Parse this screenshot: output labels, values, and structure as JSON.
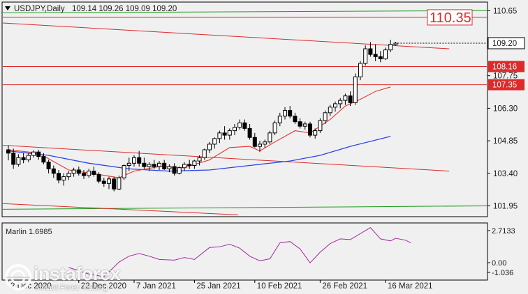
{
  "header": {
    "symbol_label": "USDJPY,Daily",
    "ohlc_label": "109.14 109.26 109.09 109.20"
  },
  "indicator": {
    "label": "Marlin 1.6985",
    "scale_labels": [
      "2.7133",
      "0.00",
      "-1.036"
    ]
  },
  "price_axis": {
    "labels": [
      "110.65",
      "109.20",
      "107.75",
      "106.30",
      "104.85",
      "103.40",
      "101.95"
    ],
    "current_price": "109.20",
    "level_labels": [
      "110.35",
      "108.16",
      "107.35"
    ]
  },
  "time_axis": {
    "labels": [
      "2 Dec 2020",
      "22 Dec 2020",
      "7 Jan 2021",
      "25 Jan 2021",
      "10 Feb 2021",
      "26 Feb 2021",
      "16 Mar 2021"
    ]
  },
  "watermark": {
    "name": "instaforex",
    "sub": "Instant Forex Trading"
  },
  "colors": {
    "background": "#f0f0f0",
    "bull_candle": "#ffffff",
    "bear_candle": "#000000",
    "ma_fast": "#e8322e",
    "ma_slow": "#2b43e6",
    "level_line": "#dd2a2a",
    "green_line": "#1f9a1f",
    "oscillator": "#a22aa2"
  },
  "chart_data": {
    "type": "candlestick",
    "symbol": "USDJPY",
    "timeframe": "Daily",
    "price_range": [
      101.5,
      111.0
    ],
    "price_ticks": [
      110.65,
      109.2,
      107.75,
      106.3,
      104.85,
      103.4,
      101.95
    ],
    "levels": [
      110.35,
      108.16,
      107.35
    ],
    "candles": [
      [
        104.45,
        104.65,
        103.98,
        104.3
      ],
      [
        104.3,
        104.5,
        103.6,
        103.8
      ],
      [
        103.8,
        104.25,
        103.7,
        104.1
      ],
      [
        104.1,
        104.3,
        103.85,
        104.0
      ],
      [
        104.0,
        104.3,
        103.9,
        104.2
      ],
      [
        104.2,
        104.42,
        104.1,
        104.35
      ],
      [
        104.35,
        104.45,
        104.0,
        104.15
      ],
      [
        104.15,
        104.3,
        103.8,
        103.9
      ],
      [
        103.9,
        104.0,
        103.4,
        103.6
      ],
      [
        103.6,
        103.75,
        103.2,
        103.4
      ],
      [
        103.4,
        103.55,
        102.95,
        103.1
      ],
      [
        103.1,
        103.4,
        102.85,
        103.25
      ],
      [
        103.25,
        103.5,
        103.1,
        103.4
      ],
      [
        103.4,
        103.65,
        103.25,
        103.55
      ],
      [
        103.55,
        103.7,
        103.3,
        103.4
      ],
      [
        103.4,
        103.55,
        103.15,
        103.3
      ],
      [
        103.3,
        103.6,
        103.2,
        103.5
      ],
      [
        103.5,
        103.7,
        103.25,
        103.35
      ],
      [
        103.35,
        103.45,
        102.95,
        103.05
      ],
      [
        103.05,
        103.2,
        102.8,
        102.95
      ],
      [
        102.95,
        103.25,
        102.7,
        103.15
      ],
      [
        103.15,
        103.25,
        102.6,
        102.7
      ],
      [
        102.7,
        103.3,
        102.65,
        103.2
      ],
      [
        103.2,
        103.8,
        103.1,
        103.75
      ],
      [
        103.75,
        104.1,
        103.5,
        103.85
      ],
      [
        103.85,
        104.2,
        103.7,
        104.1
      ],
      [
        104.1,
        104.4,
        103.7,
        103.85
      ],
      [
        103.85,
        104.1,
        103.6,
        103.7
      ],
      [
        103.7,
        103.9,
        103.5,
        103.8
      ],
      [
        103.8,
        104.0,
        103.6,
        103.7
      ],
      [
        103.7,
        103.95,
        103.55,
        103.85
      ],
      [
        103.85,
        104.0,
        103.55,
        103.6
      ],
      [
        103.6,
        103.8,
        103.45,
        103.7
      ],
      [
        103.7,
        103.85,
        103.3,
        103.4
      ],
      [
        103.4,
        103.7,
        103.35,
        103.65
      ],
      [
        103.65,
        103.9,
        103.5,
        103.8
      ],
      [
        103.8,
        104.0,
        103.6,
        103.75
      ],
      [
        103.75,
        104.0,
        103.6,
        103.95
      ],
      [
        103.95,
        104.2,
        103.75,
        104.1
      ],
      [
        104.1,
        104.5,
        104.0,
        104.45
      ],
      [
        104.45,
        104.8,
        104.3,
        104.7
      ],
      [
        104.7,
        105.0,
        104.5,
        104.95
      ],
      [
        104.95,
        105.3,
        104.75,
        105.2
      ],
      [
        105.2,
        105.5,
        104.9,
        105.1
      ],
      [
        105.1,
        105.4,
        104.9,
        105.3
      ],
      [
        105.3,
        105.6,
        105.1,
        105.45
      ],
      [
        105.45,
        105.8,
        105.35,
        105.65
      ],
      [
        105.65,
        105.8,
        105.3,
        105.4
      ],
      [
        105.4,
        105.6,
        104.9,
        105.0
      ],
      [
        105.0,
        105.2,
        104.55,
        104.6
      ],
      [
        104.6,
        104.85,
        104.35,
        104.7
      ],
      [
        104.7,
        104.9,
        104.55,
        104.8
      ],
      [
        104.8,
        105.3,
        104.7,
        105.2
      ],
      [
        105.2,
        105.75,
        105.1,
        105.65
      ],
      [
        105.65,
        106.1,
        105.5,
        105.95
      ],
      [
        105.95,
        106.35,
        105.8,
        106.2
      ],
      [
        106.2,
        106.4,
        105.85,
        105.95
      ],
      [
        105.95,
        106.1,
        105.6,
        105.7
      ],
      [
        105.7,
        105.85,
        105.4,
        105.5
      ],
      [
        105.5,
        105.7,
        105.35,
        105.6
      ],
      [
        105.6,
        105.7,
        105.0,
        105.1
      ],
      [
        105.1,
        105.4,
        104.95,
        105.3
      ],
      [
        105.3,
        105.85,
        105.2,
        105.75
      ],
      [
        105.75,
        106.2,
        105.6,
        106.1
      ],
      [
        106.1,
        106.45,
        105.95,
        106.35
      ],
      [
        106.35,
        106.6,
        106.15,
        106.5
      ],
      [
        106.5,
        106.75,
        106.3,
        106.65
      ],
      [
        106.65,
        106.95,
        106.45,
        106.85
      ],
      [
        106.85,
        107.05,
        106.4,
        106.55
      ],
      [
        106.55,
        107.85,
        106.45,
        107.7
      ],
      [
        107.7,
        108.4,
        107.55,
        108.3
      ],
      [
        108.3,
        109.1,
        108.2,
        108.95
      ],
      [
        108.95,
        109.25,
        108.6,
        108.7
      ],
      [
        108.7,
        109.15,
        108.4,
        108.6
      ],
      [
        108.6,
        108.85,
        108.35,
        108.5
      ],
      [
        108.5,
        109.0,
        108.45,
        108.9
      ],
      [
        108.9,
        109.35,
        108.8,
        109.15
      ],
      [
        109.14,
        109.26,
        109.09,
        109.2
      ]
    ],
    "ma_fast": [
      [
        0,
        104.45
      ],
      [
        6,
        104.3
      ],
      [
        12,
        103.55
      ],
      [
        18,
        103.35
      ],
      [
        22,
        103.2
      ],
      [
        25,
        103.5
      ],
      [
        30,
        103.7
      ],
      [
        35,
        103.65
      ],
      [
        40,
        104.0
      ],
      [
        44,
        104.55
      ],
      [
        48,
        104.6
      ],
      [
        50,
        104.4
      ],
      [
        53,
        104.8
      ],
      [
        57,
        105.3
      ],
      [
        60,
        105.2
      ],
      [
        64,
        105.8
      ],
      [
        67,
        106.4
      ],
      [
        70,
        106.7
      ],
      [
        73,
        107.05
      ],
      [
        76,
        107.25
      ]
    ],
    "ma_slow": [
      [
        0,
        104.4
      ],
      [
        8,
        104.2
      ],
      [
        16,
        103.85
      ],
      [
        24,
        103.6
      ],
      [
        32,
        103.5
      ],
      [
        40,
        103.55
      ],
      [
        48,
        103.75
      ],
      [
        56,
        103.95
      ],
      [
        62,
        104.2
      ],
      [
        68,
        104.6
      ],
      [
        76,
        105.05
      ]
    ],
    "trend_lines": [
      {
        "x": [
          0,
          86
        ],
        "y": [
          110.1,
          108.95
        ]
      },
      {
        "x": [
          0,
          86
        ],
        "y": [
          104.65,
          103.5
        ]
      },
      {
        "x": [
          0,
          44
        ],
        "y": [
          102.05,
          101.55
        ]
      }
    ],
    "marlin": [
      [
        12,
        -0.3
      ],
      [
        16,
        -0.8
      ],
      [
        19,
        -1.0
      ],
      [
        22,
        0.1
      ],
      [
        24,
        0.55
      ],
      [
        26,
        0.75
      ],
      [
        28,
        0.55
      ],
      [
        30,
        0.3
      ],
      [
        33,
        0.25
      ],
      [
        35,
        0.45
      ],
      [
        37,
        0.3
      ],
      [
        40,
        1.2
      ],
      [
        42,
        1.25
      ],
      [
        44,
        1.45
      ],
      [
        46,
        1.15
      ],
      [
        48,
        0.55
      ],
      [
        50,
        0.2
      ],
      [
        52,
        0.35
      ],
      [
        54,
        1.55
      ],
      [
        56,
        1.65
      ],
      [
        58,
        1.1
      ],
      [
        60,
        0.05
      ],
      [
        62,
        0.85
      ],
      [
        64,
        1.5
      ],
      [
        66,
        1.85
      ],
      [
        68,
        1.8
      ],
      [
        70,
        2.25
      ],
      [
        72,
        2.7
      ],
      [
        74,
        1.85
      ],
      [
        76,
        1.7
      ],
      [
        77,
        1.9
      ],
      [
        79,
        1.75
      ],
      [
        80,
        1.55
      ]
    ],
    "indicator_range": [
      -1.2,
      3.0
    ]
  }
}
